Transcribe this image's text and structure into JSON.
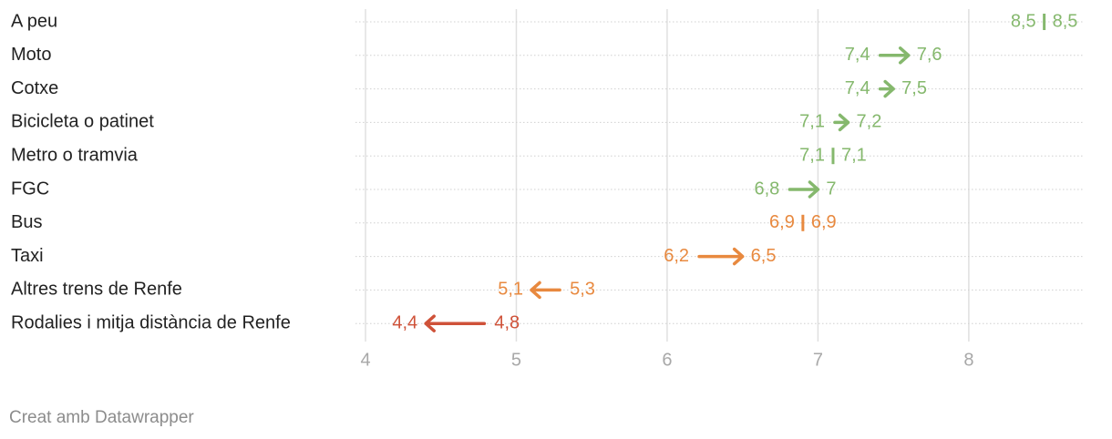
{
  "chart_data": {
    "type": "arrow",
    "categories": [
      "A peu",
      "Moto",
      "Cotxe",
      "Bicicleta o patinet",
      "Metro o tramvia",
      "FGC",
      "Bus",
      "Taxi",
      "Altres trens de Renfe",
      "Rodalies i mitja distància de Renfe"
    ],
    "from": [
      8.5,
      7.4,
      7.4,
      7.1,
      7.1,
      6.8,
      6.9,
      6.2,
      5.3,
      4.8
    ],
    "from_labels": [
      "8,5",
      "7,4",
      "7,4",
      "7,1",
      "7,1",
      "6,8",
      "6,9",
      "6,2",
      "5,3",
      "4,8"
    ],
    "to": [
      8.5,
      7.6,
      7.5,
      7.2,
      7.1,
      7,
      6.9,
      6.5,
      5.1,
      4.4
    ],
    "to_labels": [
      "8,5",
      "7,6",
      "7,5",
      "7,2",
      "7,1",
      "7",
      "6,9",
      "6,5",
      "5,1",
      "4,4"
    ],
    "colors": [
      "#85b86d",
      "#85b86d",
      "#85b86d",
      "#85b86d",
      "#85b86d",
      "#85b86d",
      "#e8893f",
      "#e8893f",
      "#e8893f",
      "#cf5239"
    ],
    "xlim": [
      4,
      8.75
    ],
    "xticks": [
      4,
      5,
      6,
      7,
      8
    ],
    "grid": true,
    "credit": "Creat amb Datawrapper"
  }
}
